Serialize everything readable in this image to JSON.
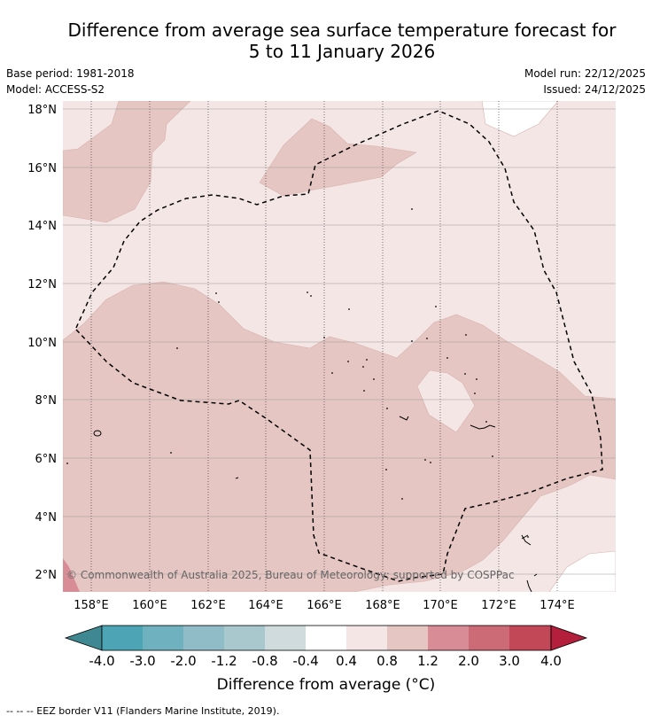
{
  "header": {
    "title_line1": "Difference from average sea surface temperature forecast for",
    "title_line2": "5 to 11 January 2026",
    "base_period": "Base period: 1981-2018",
    "model": "Model: ACCESS-S2",
    "model_run": "Model run: 22/12/2025",
    "issued": "Issued: 24/12/2025"
  },
  "map": {
    "lon_ticks": [
      "158°E",
      "160°E",
      "162°E",
      "164°E",
      "166°E",
      "168°E",
      "170°E",
      "172°E",
      "174°E"
    ],
    "lat_ticks": [
      "18°N",
      "16°N",
      "14°N",
      "12°N",
      "10°N",
      "8°N",
      "6°N",
      "4°N",
      "2°N"
    ],
    "copyright": "© Commonwealth of Australia 2025, Bureau of Meteorology; supported by COSPPac"
  },
  "colorbar": {
    "ticks": [
      "-4.0",
      "-3.0",
      "-2.0",
      "-1.2",
      "-0.8",
      "-0.4",
      "0.4",
      "0.8",
      "1.2",
      "2.0",
      "3.0",
      "4.0"
    ],
    "colors": [
      "#4da4b4",
      "#6fb1be",
      "#8fbcc6",
      "#a9c8cd",
      "#cfdbdd",
      "#ffffff",
      "#f4e6e5",
      "#e6c6c2",
      "#d88d96",
      "#cc6a76",
      "#c24757"
    ],
    "extend_low_color": "#3f8891",
    "extend_high_color": "#b41f3c",
    "title": "Difference from average (°C)"
  },
  "footer": {
    "legend": "--  --  -- EEZ border V11 (Flanders Marine Institute, 2019)."
  }
}
